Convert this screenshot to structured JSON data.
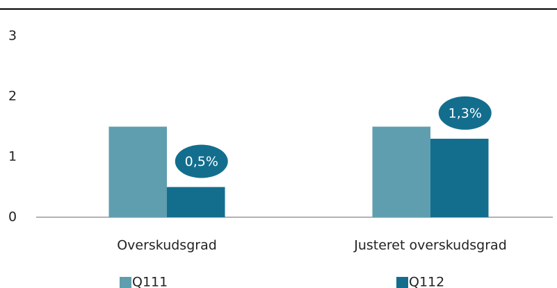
{
  "chart_data": {
    "type": "bar",
    "categories": [
      "Overskudsgrad",
      "Justeret overskudsgrad"
    ],
    "series": [
      {
        "name": "Q111",
        "color": "#5f9eae",
        "values": [
          1.5,
          1.5
        ]
      },
      {
        "name": "Q112",
        "color": "#136e8e",
        "values": [
          0.5,
          1.3
        ],
        "value_labels": [
          "0,5%",
          "1,3%"
        ]
      }
    ],
    "ylim": [
      0,
      3
    ],
    "yticks": [
      0,
      1,
      2,
      3
    ],
    "grid": false,
    "legend": "bottom"
  }
}
